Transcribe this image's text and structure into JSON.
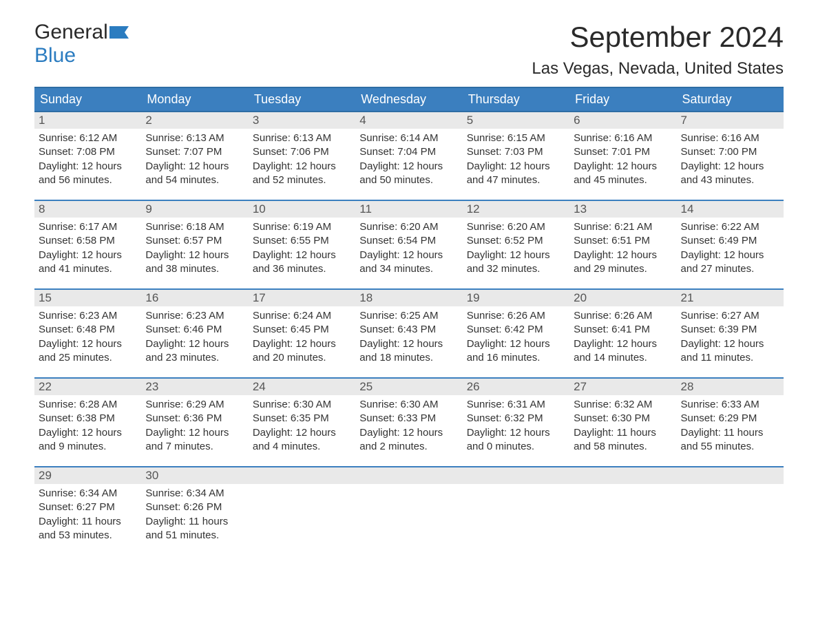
{
  "brand": {
    "general": "General",
    "blue": "Blue"
  },
  "title": "September 2024",
  "location": "Las Vegas, Nevada, United States",
  "colors": {
    "header_bg": "#3b7fbf",
    "header_border": "#2e6da4",
    "daynum_bg": "#e9e9e9",
    "text": "#333333",
    "brand_blue": "#2b7cc0",
    "background": "#ffffff"
  },
  "weekdays": [
    "Sunday",
    "Monday",
    "Tuesday",
    "Wednesday",
    "Thursday",
    "Friday",
    "Saturday"
  ],
  "labels": {
    "sunrise": "Sunrise:",
    "sunset": "Sunset:",
    "daylight": "Daylight:"
  },
  "days": [
    {
      "n": 1,
      "sunrise": "6:12 AM",
      "sunset": "7:08 PM",
      "daylight": "12 hours and 56 minutes."
    },
    {
      "n": 2,
      "sunrise": "6:13 AM",
      "sunset": "7:07 PM",
      "daylight": "12 hours and 54 minutes."
    },
    {
      "n": 3,
      "sunrise": "6:13 AM",
      "sunset": "7:06 PM",
      "daylight": "12 hours and 52 minutes."
    },
    {
      "n": 4,
      "sunrise": "6:14 AM",
      "sunset": "7:04 PM",
      "daylight": "12 hours and 50 minutes."
    },
    {
      "n": 5,
      "sunrise": "6:15 AM",
      "sunset": "7:03 PM",
      "daylight": "12 hours and 47 minutes."
    },
    {
      "n": 6,
      "sunrise": "6:16 AM",
      "sunset": "7:01 PM",
      "daylight": "12 hours and 45 minutes."
    },
    {
      "n": 7,
      "sunrise": "6:16 AM",
      "sunset": "7:00 PM",
      "daylight": "12 hours and 43 minutes."
    },
    {
      "n": 8,
      "sunrise": "6:17 AM",
      "sunset": "6:58 PM",
      "daylight": "12 hours and 41 minutes."
    },
    {
      "n": 9,
      "sunrise": "6:18 AM",
      "sunset": "6:57 PM",
      "daylight": "12 hours and 38 minutes."
    },
    {
      "n": 10,
      "sunrise": "6:19 AM",
      "sunset": "6:55 PM",
      "daylight": "12 hours and 36 minutes."
    },
    {
      "n": 11,
      "sunrise": "6:20 AM",
      "sunset": "6:54 PM",
      "daylight": "12 hours and 34 minutes."
    },
    {
      "n": 12,
      "sunrise": "6:20 AM",
      "sunset": "6:52 PM",
      "daylight": "12 hours and 32 minutes."
    },
    {
      "n": 13,
      "sunrise": "6:21 AM",
      "sunset": "6:51 PM",
      "daylight": "12 hours and 29 minutes."
    },
    {
      "n": 14,
      "sunrise": "6:22 AM",
      "sunset": "6:49 PM",
      "daylight": "12 hours and 27 minutes."
    },
    {
      "n": 15,
      "sunrise": "6:23 AM",
      "sunset": "6:48 PM",
      "daylight": "12 hours and 25 minutes."
    },
    {
      "n": 16,
      "sunrise": "6:23 AM",
      "sunset": "6:46 PM",
      "daylight": "12 hours and 23 minutes."
    },
    {
      "n": 17,
      "sunrise": "6:24 AM",
      "sunset": "6:45 PM",
      "daylight": "12 hours and 20 minutes."
    },
    {
      "n": 18,
      "sunrise": "6:25 AM",
      "sunset": "6:43 PM",
      "daylight": "12 hours and 18 minutes."
    },
    {
      "n": 19,
      "sunrise": "6:26 AM",
      "sunset": "6:42 PM",
      "daylight": "12 hours and 16 minutes."
    },
    {
      "n": 20,
      "sunrise": "6:26 AM",
      "sunset": "6:41 PM",
      "daylight": "12 hours and 14 minutes."
    },
    {
      "n": 21,
      "sunrise": "6:27 AM",
      "sunset": "6:39 PM",
      "daylight": "12 hours and 11 minutes."
    },
    {
      "n": 22,
      "sunrise": "6:28 AM",
      "sunset": "6:38 PM",
      "daylight": "12 hours and 9 minutes."
    },
    {
      "n": 23,
      "sunrise": "6:29 AM",
      "sunset": "6:36 PM",
      "daylight": "12 hours and 7 minutes."
    },
    {
      "n": 24,
      "sunrise": "6:30 AM",
      "sunset": "6:35 PM",
      "daylight": "12 hours and 4 minutes."
    },
    {
      "n": 25,
      "sunrise": "6:30 AM",
      "sunset": "6:33 PM",
      "daylight": "12 hours and 2 minutes."
    },
    {
      "n": 26,
      "sunrise": "6:31 AM",
      "sunset": "6:32 PM",
      "daylight": "12 hours and 0 minutes."
    },
    {
      "n": 27,
      "sunrise": "6:32 AM",
      "sunset": "6:30 PM",
      "daylight": "11 hours and 58 minutes."
    },
    {
      "n": 28,
      "sunrise": "6:33 AM",
      "sunset": "6:29 PM",
      "daylight": "11 hours and 55 minutes."
    },
    {
      "n": 29,
      "sunrise": "6:34 AM",
      "sunset": "6:27 PM",
      "daylight": "11 hours and 53 minutes."
    },
    {
      "n": 30,
      "sunrise": "6:34 AM",
      "sunset": "6:26 PM",
      "daylight": "11 hours and 51 minutes."
    }
  ],
  "start_weekday": 0,
  "trailing_empty": 5
}
